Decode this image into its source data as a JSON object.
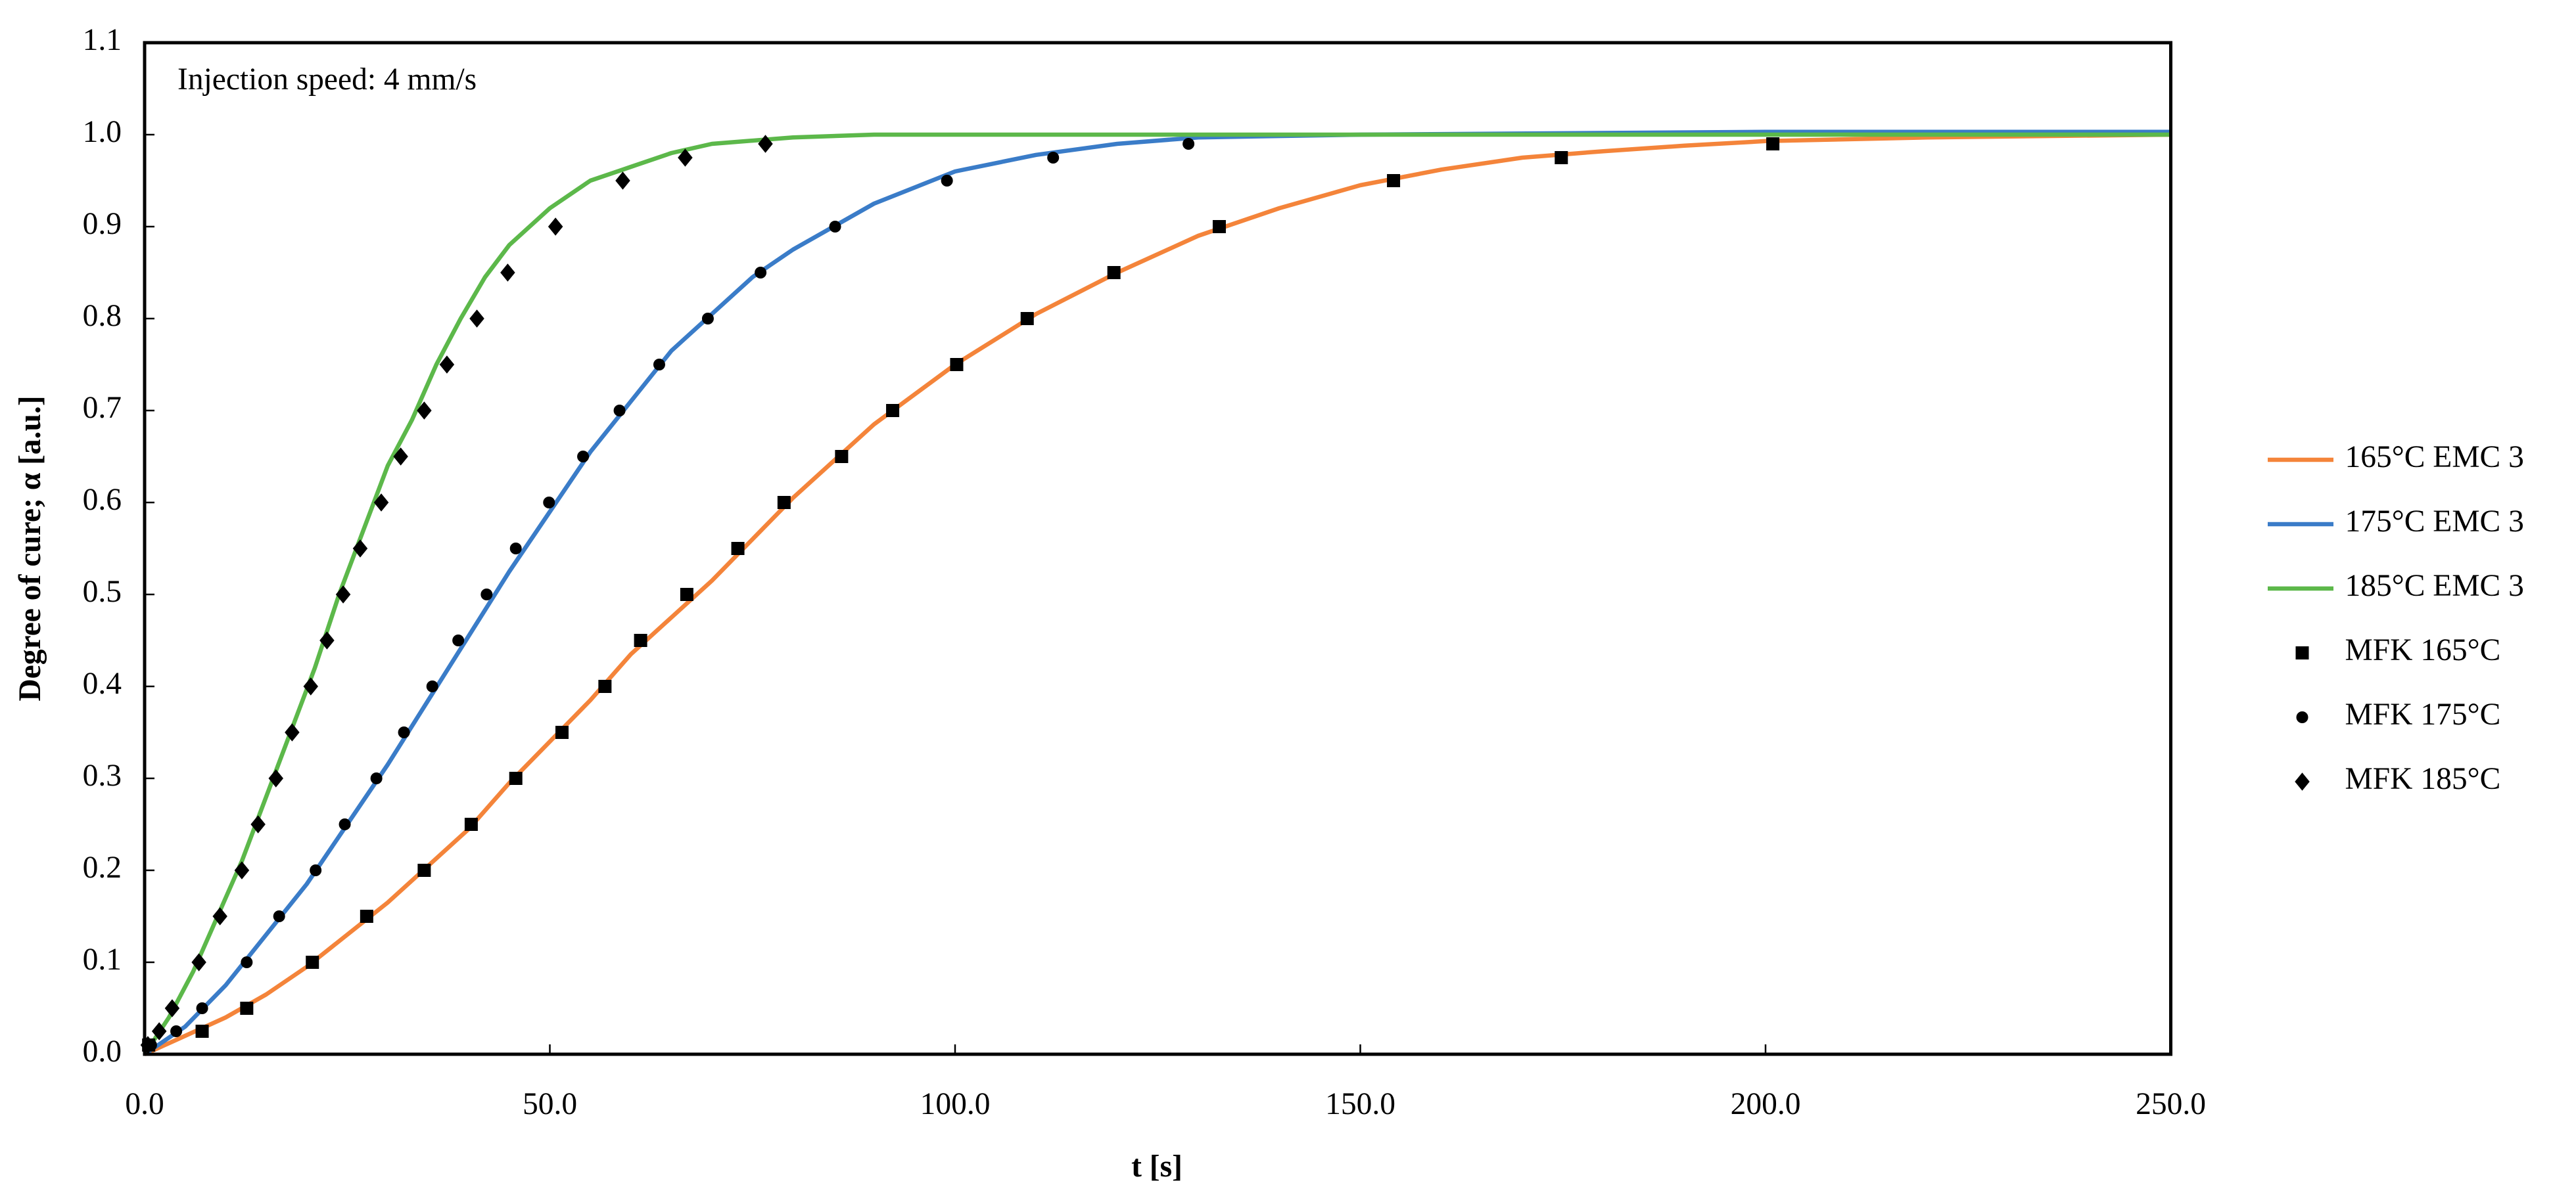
{
  "chart_data": {
    "type": "line",
    "annotation": "Injection speed: 4 mm/s",
    "x_label": "t [s]",
    "y_label": "Degree of cure; α [a.u.]",
    "xlim": [
      0,
      250
    ],
    "ylim": [
      0,
      1.1
    ],
    "xticks": [
      {
        "value": 0,
        "label": "0.0"
      },
      {
        "value": 50,
        "label": "50.0"
      },
      {
        "value": 100,
        "label": "100.0"
      },
      {
        "value": 150,
        "label": "150.0"
      },
      {
        "value": 200,
        "label": "200.0"
      },
      {
        "value": 250,
        "label": "250.0"
      }
    ],
    "yticks": [
      {
        "value": 0,
        "label": "0.0"
      },
      0.1,
      0.2,
      0.3,
      0.4,
      0.5,
      0.6,
      0.7,
      0.8,
      0.9,
      {
        "value": 1,
        "label": "1.0"
      },
      1.1
    ],
    "legend": "right",
    "series": [
      {
        "name": "165°C EMC 3",
        "kind": "line",
        "color": "#f4843a",
        "x": [
          0,
          5,
          10,
          15,
          20,
          25,
          30,
          35,
          40,
          45,
          50,
          55,
          60,
          65,
          70,
          75,
          80,
          90,
          100,
          110,
          120,
          130,
          140,
          150,
          160,
          170,
          180,
          190,
          200,
          220,
          250
        ],
        "values": [
          0,
          0.02,
          0.04,
          0.065,
          0.095,
          0.13,
          0.165,
          0.205,
          0.245,
          0.295,
          0.34,
          0.385,
          0.435,
          0.475,
          0.515,
          0.56,
          0.605,
          0.685,
          0.75,
          0.805,
          0.85,
          0.89,
          0.92,
          0.945,
          0.962,
          0.975,
          0.982,
          0.988,
          0.993,
          0.997,
          1.0
        ]
      },
      {
        "name": "175°C EMC 3",
        "kind": "line",
        "color": "#3a7cc8",
        "x": [
          0,
          5,
          10,
          15,
          20,
          25,
          30,
          35,
          40,
          45,
          50,
          55,
          60,
          65,
          70,
          75,
          80,
          90,
          100,
          110,
          120,
          130,
          150,
          200,
          250
        ],
        "values": [
          0,
          0.03,
          0.075,
          0.13,
          0.185,
          0.25,
          0.315,
          0.385,
          0.455,
          0.525,
          0.59,
          0.655,
          0.71,
          0.765,
          0.805,
          0.845,
          0.875,
          0.925,
          0.96,
          0.978,
          0.99,
          0.997,
          1.0,
          1.003,
          1.003
        ]
      },
      {
        "name": "185°C EMC 3",
        "kind": "line",
        "color": "#5cb84a",
        "x": [
          0,
          3,
          6,
          9,
          12,
          15,
          18,
          21,
          24,
          27,
          30,
          33,
          36,
          39,
          42,
          45,
          50,
          55,
          60,
          65,
          70,
          80,
          90,
          250
        ],
        "values": [
          0,
          0.04,
          0.09,
          0.15,
          0.21,
          0.28,
          0.35,
          0.42,
          0.5,
          0.57,
          0.64,
          0.69,
          0.75,
          0.8,
          0.845,
          0.88,
          0.92,
          0.95,
          0.965,
          0.98,
          0.99,
          0.997,
          1.0,
          1.0
        ]
      },
      {
        "name": "MFK 165°C",
        "kind": "scatter",
        "marker": "square",
        "color": "#000000",
        "x": [
          0.5,
          7.1,
          12.6,
          20.7,
          27.4,
          34.5,
          40.3,
          45.8,
          51.5,
          56.8,
          61.2,
          66.9,
          73.2,
          78.9,
          86,
          92.3,
          100.2,
          108.9,
          119.6,
          132.6,
          154.1,
          174.8,
          200.9
        ],
        "values": [
          0.01,
          0.025,
          0.05,
          0.1,
          0.15,
          0.2,
          0.25,
          0.3,
          0.35,
          0.4,
          0.45,
          0.5,
          0.55,
          0.6,
          0.65,
          0.7,
          0.75,
          0.8,
          0.85,
          0.9,
          0.95,
          0.975,
          0.99
        ]
      },
      {
        "name": "MFK 175°C",
        "kind": "scatter",
        "marker": "circle",
        "color": "#000000",
        "x": [
          0.8,
          3.9,
          7.1,
          12.6,
          16.6,
          21.1,
          24.7,
          28.6,
          32,
          35.5,
          38.7,
          42.2,
          45.8,
          49.9,
          54.1,
          58.6,
          63.5,
          69.5,
          76,
          85.2,
          99,
          112.1,
          128.8
        ],
        "values": [
          0.01,
          0.025,
          0.05,
          0.1,
          0.15,
          0.2,
          0.25,
          0.3,
          0.35,
          0.4,
          0.45,
          0.5,
          0.55,
          0.6,
          0.65,
          0.7,
          0.75,
          0.8,
          0.85,
          0.9,
          0.95,
          0.975,
          0.99
        ]
      },
      {
        "name": "MFK 185°C",
        "kind": "scatter",
        "marker": "diamond",
        "color": "#000000",
        "x": [
          0.4,
          1.8,
          3.4,
          6.7,
          9.3,
          12,
          14,
          16.2,
          18.2,
          20.5,
          22.5,
          24.5,
          26.6,
          29.2,
          31.6,
          34.5,
          37.3,
          41,
          44.8,
          50.7,
          59,
          66.7,
          76.6
        ],
        "values": [
          0.01,
          0.025,
          0.05,
          0.1,
          0.15,
          0.2,
          0.25,
          0.3,
          0.35,
          0.4,
          0.45,
          0.5,
          0.55,
          0.6,
          0.65,
          0.7,
          0.75,
          0.8,
          0.85,
          0.9,
          0.95,
          0.975,
          0.99
        ]
      }
    ]
  }
}
